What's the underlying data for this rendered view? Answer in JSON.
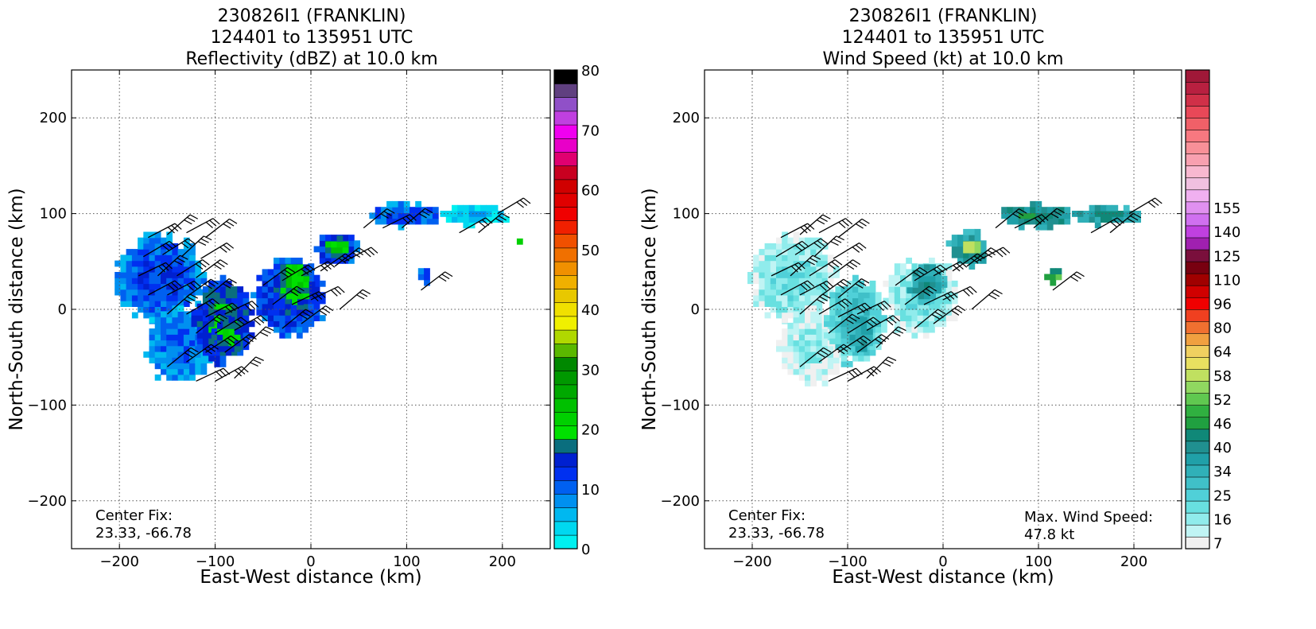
{
  "chart_data": [
    {
      "type": "heatmap",
      "title_lines": [
        "230826I1 (FRANKLIN)",
        "124401 to 135951 UTC",
        "Reflectivity (dBZ) at 10.0 km"
      ],
      "xlabel": "East-West distance (km)",
      "ylabel": "North-South distance (km)",
      "xlim": [
        -250,
        250
      ],
      "ylim": [
        -250,
        250
      ],
      "x_ticks": [
        -200,
        -100,
        0,
        100,
        200
      ],
      "y_ticks": [
        -200,
        -100,
        0,
        100,
        200
      ],
      "x_tick_labels": [
        "−200",
        "−100",
        "0",
        "100",
        "200"
      ],
      "y_tick_labels": [
        "−200",
        "−100",
        "0",
        "100",
        "200"
      ],
      "grid": true,
      "annotations": [
        {
          "text": "Center Fix:",
          "x": -225,
          "y": -215
        },
        {
          "text": "23.33, -66.78",
          "x": -225,
          "y": -233
        }
      ],
      "colorbar": {
        "min": 0,
        "max": 80,
        "ticks": [
          0,
          10,
          20,
          30,
          40,
          50,
          60,
          70,
          80
        ],
        "tick_labels": [
          "0",
          "10",
          "20",
          "30",
          "40",
          "50",
          "60",
          "70",
          "80"
        ],
        "colors": [
          "#00f0f0",
          "#00d8f0",
          "#00b8f0",
          "#0090f0",
          "#0060f0",
          "#0030f0",
          "#0020d0",
          "#0a6e7e",
          "#00e000",
          "#00d000",
          "#00c000",
          "#00a800",
          "#009800",
          "#008800",
          "#5ab800",
          "#b0d800",
          "#f0f000",
          "#f0e000",
          "#e8c800",
          "#f0b000",
          "#f09000",
          "#f07000",
          "#f05000",
          "#f02000",
          "#f00000",
          "#e00000",
          "#d00000",
          "#c80020",
          "#e00070",
          "#e800c8",
          "#f000f0",
          "#c040e0",
          "#9050c8",
          "#604080",
          "#000000"
        ]
      },
      "echo_regions": [
        {
          "name": "western-band",
          "cx": -160,
          "cy": 30,
          "rx": 45,
          "ry": 45,
          "level": 5
        },
        {
          "name": "western-band-lower",
          "cx": -140,
          "cy": -40,
          "rx": 35,
          "ry": 40,
          "level": 4
        },
        {
          "name": "southwest-cell",
          "cx": -95,
          "cy": -15,
          "rx": 30,
          "ry": 45,
          "level": 7
        },
        {
          "name": "southwest-core",
          "cx": -90,
          "cy": -30,
          "rx": 14,
          "ry": 20,
          "level": 8
        },
        {
          "name": "central-cell",
          "cx": -25,
          "cy": 10,
          "rx": 38,
          "ry": 40,
          "level": 6
        },
        {
          "name": "central-core",
          "cx": -20,
          "cy": 25,
          "rx": 18,
          "ry": 20,
          "level": 9
        },
        {
          "name": "northeast-cell",
          "cx": 25,
          "cy": 60,
          "rx": 22,
          "ry": 18,
          "level": 6
        },
        {
          "name": "northeast-core",
          "cx": 27,
          "cy": 62,
          "rx": 12,
          "ry": 9,
          "level": 10
        },
        {
          "name": "spiral-band",
          "cx": 95,
          "cy": 95,
          "rx": 40,
          "ry": 12,
          "level": 5
        },
        {
          "name": "far-east-band",
          "cx": 170,
          "cy": 95,
          "rx": 35,
          "ry": 10,
          "level": 2
        },
        {
          "name": "east-spot",
          "cx": 215,
          "cy": 67,
          "rx": 6,
          "ry": 5,
          "level": 9
        },
        {
          "name": "east-isolated",
          "cx": 115,
          "cy": 33,
          "rx": 9,
          "ry": 8,
          "level": 5
        }
      ]
    },
    {
      "type": "heatmap",
      "title_lines": [
        "230826I1 (FRANKLIN)",
        "124401 to 135951 UTC",
        "Wind Speed (kt) at 10.0 km"
      ],
      "xlabel": "East-West distance (km)",
      "ylabel": "North-South distance (km)",
      "xlim": [
        -250,
        250
      ],
      "ylim": [
        -250,
        250
      ],
      "x_ticks": [
        -200,
        -100,
        0,
        100,
        200
      ],
      "y_ticks": [
        -200,
        -100,
        0,
        100,
        200
      ],
      "x_tick_labels": [
        "−200",
        "−100",
        "0",
        "100",
        "200"
      ],
      "y_tick_labels": [
        "−200",
        "−100",
        "0",
        "100",
        "200"
      ],
      "grid": true,
      "annotations": [
        {
          "text": "Center Fix:",
          "x": -225,
          "y": -215
        },
        {
          "text": "23.33, -66.78",
          "x": -225,
          "y": -233
        },
        {
          "text": "Max. Wind Speed:",
          "x": 85,
          "y": -217
        },
        {
          "text": "47.8 kt",
          "x": 85,
          "y": -235
        }
      ],
      "max_wind_speed_kt": 47.8,
      "colorbar": {
        "min": 0,
        "max": 27,
        "ticks": [
          1,
          4,
          7,
          10,
          13,
          16,
          19,
          22,
          25
        ],
        "tick_labels": [
          "7",
          "16",
          "25",
          "34",
          "40",
          "46",
          "52",
          "58",
          "64",
          "80",
          "96",
          "110",
          "125",
          "140",
          "155"
        ],
        "label_positions": [
          0,
          2,
          4,
          6,
          8,
          10,
          12,
          14,
          16,
          18,
          20,
          22,
          24,
          26,
          28
        ],
        "colors": [
          "#f0f0f0",
          "#c0f4f4",
          "#90ecec",
          "#68e0e0",
          "#50d0d8",
          "#40c0c8",
          "#30b0b8",
          "#20a0a8",
          "#209090",
          "#108878",
          "#20a040",
          "#30b040",
          "#60c850",
          "#90d860",
          "#c0e060",
          "#e8e060",
          "#f0d060",
          "#f0a040",
          "#f07030",
          "#f04020",
          "#f00000",
          "#d00000",
          "#a00000",
          "#780010",
          "#7a0f3c",
          "#a020b0",
          "#c040e0",
          "#d070f0",
          "#e090f0",
          "#f0b0f0",
          "#f0c0e0",
          "#f8b8d0",
          "#f8a0b0",
          "#f89098",
          "#f87880",
          "#f06068",
          "#e84858",
          "#d03048",
          "#b82040",
          "#a01838"
        ]
      },
      "echo_regions": [
        {
          "name": "western-band",
          "cx": -160,
          "cy": 30,
          "rx": 45,
          "ry": 45,
          "level": 3
        },
        {
          "name": "western-band-lower",
          "cx": -140,
          "cy": -40,
          "rx": 35,
          "ry": 40,
          "level": 2
        },
        {
          "name": "southwest-cell",
          "cx": -95,
          "cy": -15,
          "rx": 30,
          "ry": 45,
          "level": 5
        },
        {
          "name": "southwest-core",
          "cx": -90,
          "cy": -30,
          "rx": 14,
          "ry": 20,
          "level": 7
        },
        {
          "name": "central-cell",
          "cx": -25,
          "cy": 10,
          "rx": 38,
          "ry": 40,
          "level": 3
        },
        {
          "name": "central-core",
          "cx": -20,
          "cy": 25,
          "rx": 18,
          "ry": 20,
          "level": 8
        },
        {
          "name": "northeast-cell",
          "cx": 25,
          "cy": 60,
          "rx": 22,
          "ry": 18,
          "level": 8
        },
        {
          "name": "northeast-core",
          "cx": 27,
          "cy": 62,
          "rx": 12,
          "ry": 9,
          "level": 15
        },
        {
          "name": "spiral-band",
          "cx": 95,
          "cy": 95,
          "rx": 40,
          "ry": 12,
          "level": 9
        },
        {
          "name": "far-east-band",
          "cx": 170,
          "cy": 95,
          "rx": 35,
          "ry": 10,
          "level": 8
        },
        {
          "name": "east-isolated",
          "cx": 115,
          "cy": 33,
          "rx": 9,
          "ry": 8,
          "level": 11
        }
      ]
    }
  ],
  "wind_barbs": [
    {
      "x": -170,
      "y": 75
    },
    {
      "x": -150,
      "y": 78
    },
    {
      "x": -130,
      "y": 80
    },
    {
      "x": -110,
      "y": 75
    },
    {
      "x": -175,
      "y": 55
    },
    {
      "x": -155,
      "y": 57
    },
    {
      "x": -135,
      "y": 55
    },
    {
      "x": -115,
      "y": 53
    },
    {
      "x": -180,
      "y": 35
    },
    {
      "x": -160,
      "y": 35
    },
    {
      "x": -140,
      "y": 35
    },
    {
      "x": -120,
      "y": 33
    },
    {
      "x": -170,
      "y": 15
    },
    {
      "x": -150,
      "y": 15
    },
    {
      "x": -130,
      "y": 13
    },
    {
      "x": -110,
      "y": 12
    },
    {
      "x": -150,
      "y": -5
    },
    {
      "x": -130,
      "y": -5
    },
    {
      "x": -110,
      "y": -8
    },
    {
      "x": -90,
      "y": -5
    },
    {
      "x": -120,
      "y": -25
    },
    {
      "x": -100,
      "y": -25
    },
    {
      "x": -80,
      "y": -22
    },
    {
      "x": -150,
      "y": -60
    },
    {
      "x": -130,
      "y": -55
    },
    {
      "x": -110,
      "y": -45
    },
    {
      "x": -90,
      "y": -45
    },
    {
      "x": -70,
      "y": -40
    },
    {
      "x": -120,
      "y": -75
    },
    {
      "x": -100,
      "y": -75
    },
    {
      "x": -80,
      "y": -72
    },
    {
      "x": -50,
      "y": 25
    },
    {
      "x": -30,
      "y": 30
    },
    {
      "x": -10,
      "y": 35
    },
    {
      "x": 10,
      "y": 40
    },
    {
      "x": -40,
      "y": 5
    },
    {
      "x": -20,
      "y": 5
    },
    {
      "x": 0,
      "y": 10
    },
    {
      "x": -30,
      "y": -20
    },
    {
      "x": -10,
      "y": -15
    },
    {
      "x": 25,
      "y": 45
    },
    {
      "x": 35,
      "y": 50
    },
    {
      "x": 55,
      "y": 85
    },
    {
      "x": 75,
      "y": 85
    },
    {
      "x": 95,
      "y": 85
    },
    {
      "x": 155,
      "y": 80
    },
    {
      "x": 175,
      "y": 80
    },
    {
      "x": 195,
      "y": 100
    },
    {
      "x": 115,
      "y": 20
    },
    {
      "x": 30,
      "y": 0
    }
  ]
}
